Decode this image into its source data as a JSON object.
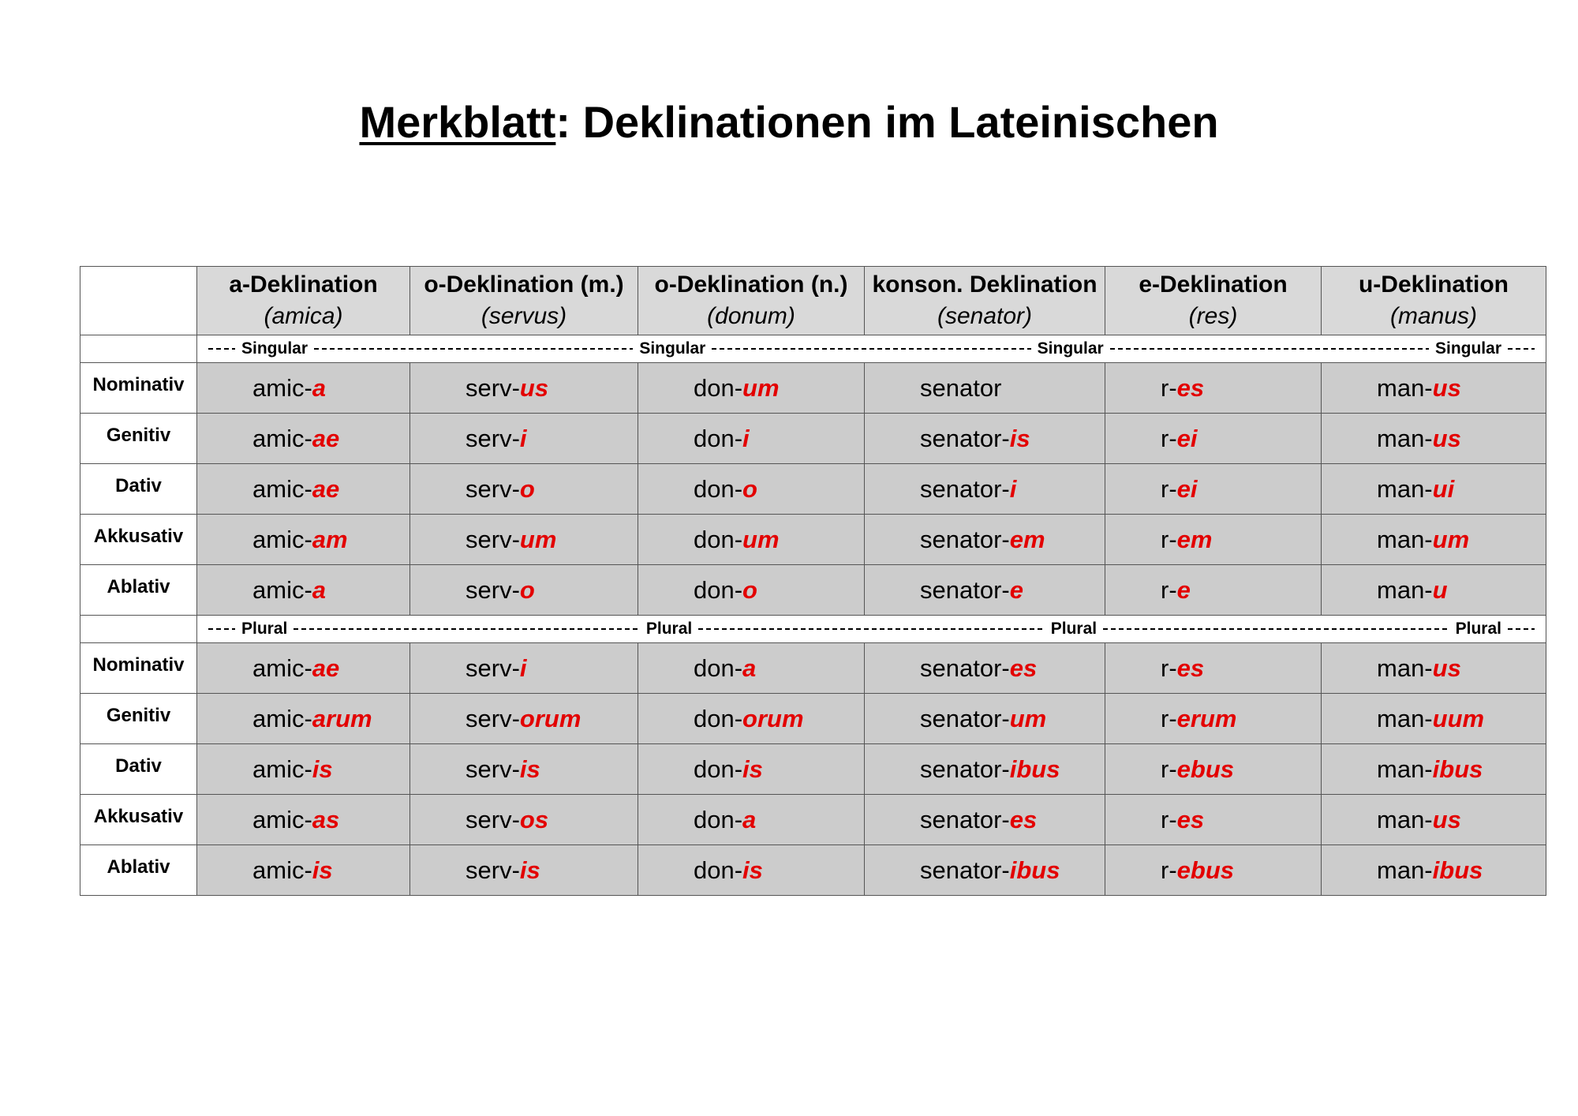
{
  "title": {
    "underlined": "Merkblatt",
    "rest": ": Deklinationen im Lateinischen"
  },
  "table": {
    "columns": [
      {
        "name": "a-Deklination",
        "example": "(amica)"
      },
      {
        "name": "o-Deklination (m.)",
        "example": "(servus)"
      },
      {
        "name": "o-Deklination (n.)",
        "example": "(donum)"
      },
      {
        "name": "konson. Deklination",
        "example": "(senator)"
      },
      {
        "name": "e-Deklination",
        "example": "(res)"
      },
      {
        "name": "u-Deklination",
        "example": "(manus)"
      }
    ],
    "sections": [
      {
        "divider": [
          "Singular",
          "Singular",
          "Singular",
          "Singular"
        ],
        "rows": [
          {
            "case": "Nominativ",
            "cells": [
              {
                "stem": "amic-",
                "ending": "a"
              },
              {
                "stem": "serv-",
                "ending": "us"
              },
              {
                "stem": "don-",
                "ending": "um"
              },
              {
                "stem": "senator"
              },
              {
                "stem": "r-",
                "ending": "es"
              },
              {
                "stem": "man-",
                "ending": "us"
              }
            ]
          },
          {
            "case": "Genitiv",
            "cells": [
              {
                "stem": "amic-",
                "ending": "ae"
              },
              {
                "stem": "serv-",
                "ending": "i"
              },
              {
                "stem": "don-",
                "ending": "i"
              },
              {
                "stem": "senator-",
                "ending": "is"
              },
              {
                "stem": "r-",
                "ending": "ei"
              },
              {
                "stem": "man-",
                "ending": "us"
              }
            ]
          },
          {
            "case": "Dativ",
            "cells": [
              {
                "stem": "amic-",
                "ending": "ae"
              },
              {
                "stem": "serv-",
                "ending": "o"
              },
              {
                "stem": "don-",
                "ending": "o"
              },
              {
                "stem": "senator-",
                "ending": "i"
              },
              {
                "stem": "r-",
                "ending": "ei"
              },
              {
                "stem": "man-",
                "ending": "ui"
              }
            ]
          },
          {
            "case": "Akkusativ",
            "cells": [
              {
                "stem": "amic-",
                "ending": "am"
              },
              {
                "stem": "serv-",
                "ending": "um"
              },
              {
                "stem": "don-",
                "ending": "um"
              },
              {
                "stem": "senator-",
                "ending": "em"
              },
              {
                "stem": "r-",
                "ending": "em"
              },
              {
                "stem": "man-",
                "ending": "um"
              }
            ]
          },
          {
            "case": "Ablativ",
            "cells": [
              {
                "stem": "amic-",
                "ending": "a"
              },
              {
                "stem": "serv-",
                "ending": "o"
              },
              {
                "stem": "don-",
                "ending": "o"
              },
              {
                "stem": "senator-",
                "ending": "e"
              },
              {
                "stem": "r-",
                "ending": "e"
              },
              {
                "stem": "man-",
                "ending": "u"
              }
            ]
          }
        ]
      },
      {
        "divider": [
          "Plural",
          "Plural",
          "Plural",
          "Plural"
        ],
        "rows": [
          {
            "case": "Nominativ",
            "cells": [
              {
                "stem": "amic-",
                "ending": "ae"
              },
              {
                "stem": "serv-",
                "ending": "i"
              },
              {
                "stem": "don-",
                "ending": "a"
              },
              {
                "stem": "senator-",
                "ending": "es"
              },
              {
                "stem": "r-",
                "ending": "es"
              },
              {
                "stem": "man-",
                "ending": "us"
              }
            ]
          },
          {
            "case": "Genitiv",
            "cells": [
              {
                "stem": "amic-",
                "ending": "arum"
              },
              {
                "stem": "serv-",
                "ending": "orum"
              },
              {
                "stem": "don-",
                "ending": "orum"
              },
              {
                "stem": "senator-",
                "ending": "um"
              },
              {
                "stem": "r-",
                "ending": "erum"
              },
              {
                "stem": "man-",
                "ending": "uum"
              }
            ]
          },
          {
            "case": "Dativ",
            "cells": [
              {
                "stem": "amic-",
                "ending": "is"
              },
              {
                "stem": "serv-",
                "ending": "is"
              },
              {
                "stem": "don-",
                "ending": "is"
              },
              {
                "stem": "senator-",
                "ending": "ibus"
              },
              {
                "stem": "r-",
                "ending": "ebus"
              },
              {
                "stem": "man-",
                "ending": "ibus"
              }
            ]
          },
          {
            "case": "Akkusativ",
            "cells": [
              {
                "stem": "amic-",
                "ending": "as"
              },
              {
                "stem": "serv-",
                "ending": "os"
              },
              {
                "stem": "don-",
                "ending": "a"
              },
              {
                "stem": "senator-",
                "ending": "es"
              },
              {
                "stem": "r-",
                "ending": "es"
              },
              {
                "stem": "man-",
                "ending": "us"
              }
            ]
          },
          {
            "case": "Ablativ",
            "cells": [
              {
                "stem": "amic-",
                "ending": "is"
              },
              {
                "stem": "serv-",
                "ending": "is"
              },
              {
                "stem": "don-",
                "ending": "is"
              },
              {
                "stem": "senator-",
                "ending": "ibus"
              },
              {
                "stem": "r-",
                "ending": "ebus"
              },
              {
                "stem": "man-",
                "ending": "ibus"
              }
            ]
          }
        ]
      }
    ]
  }
}
